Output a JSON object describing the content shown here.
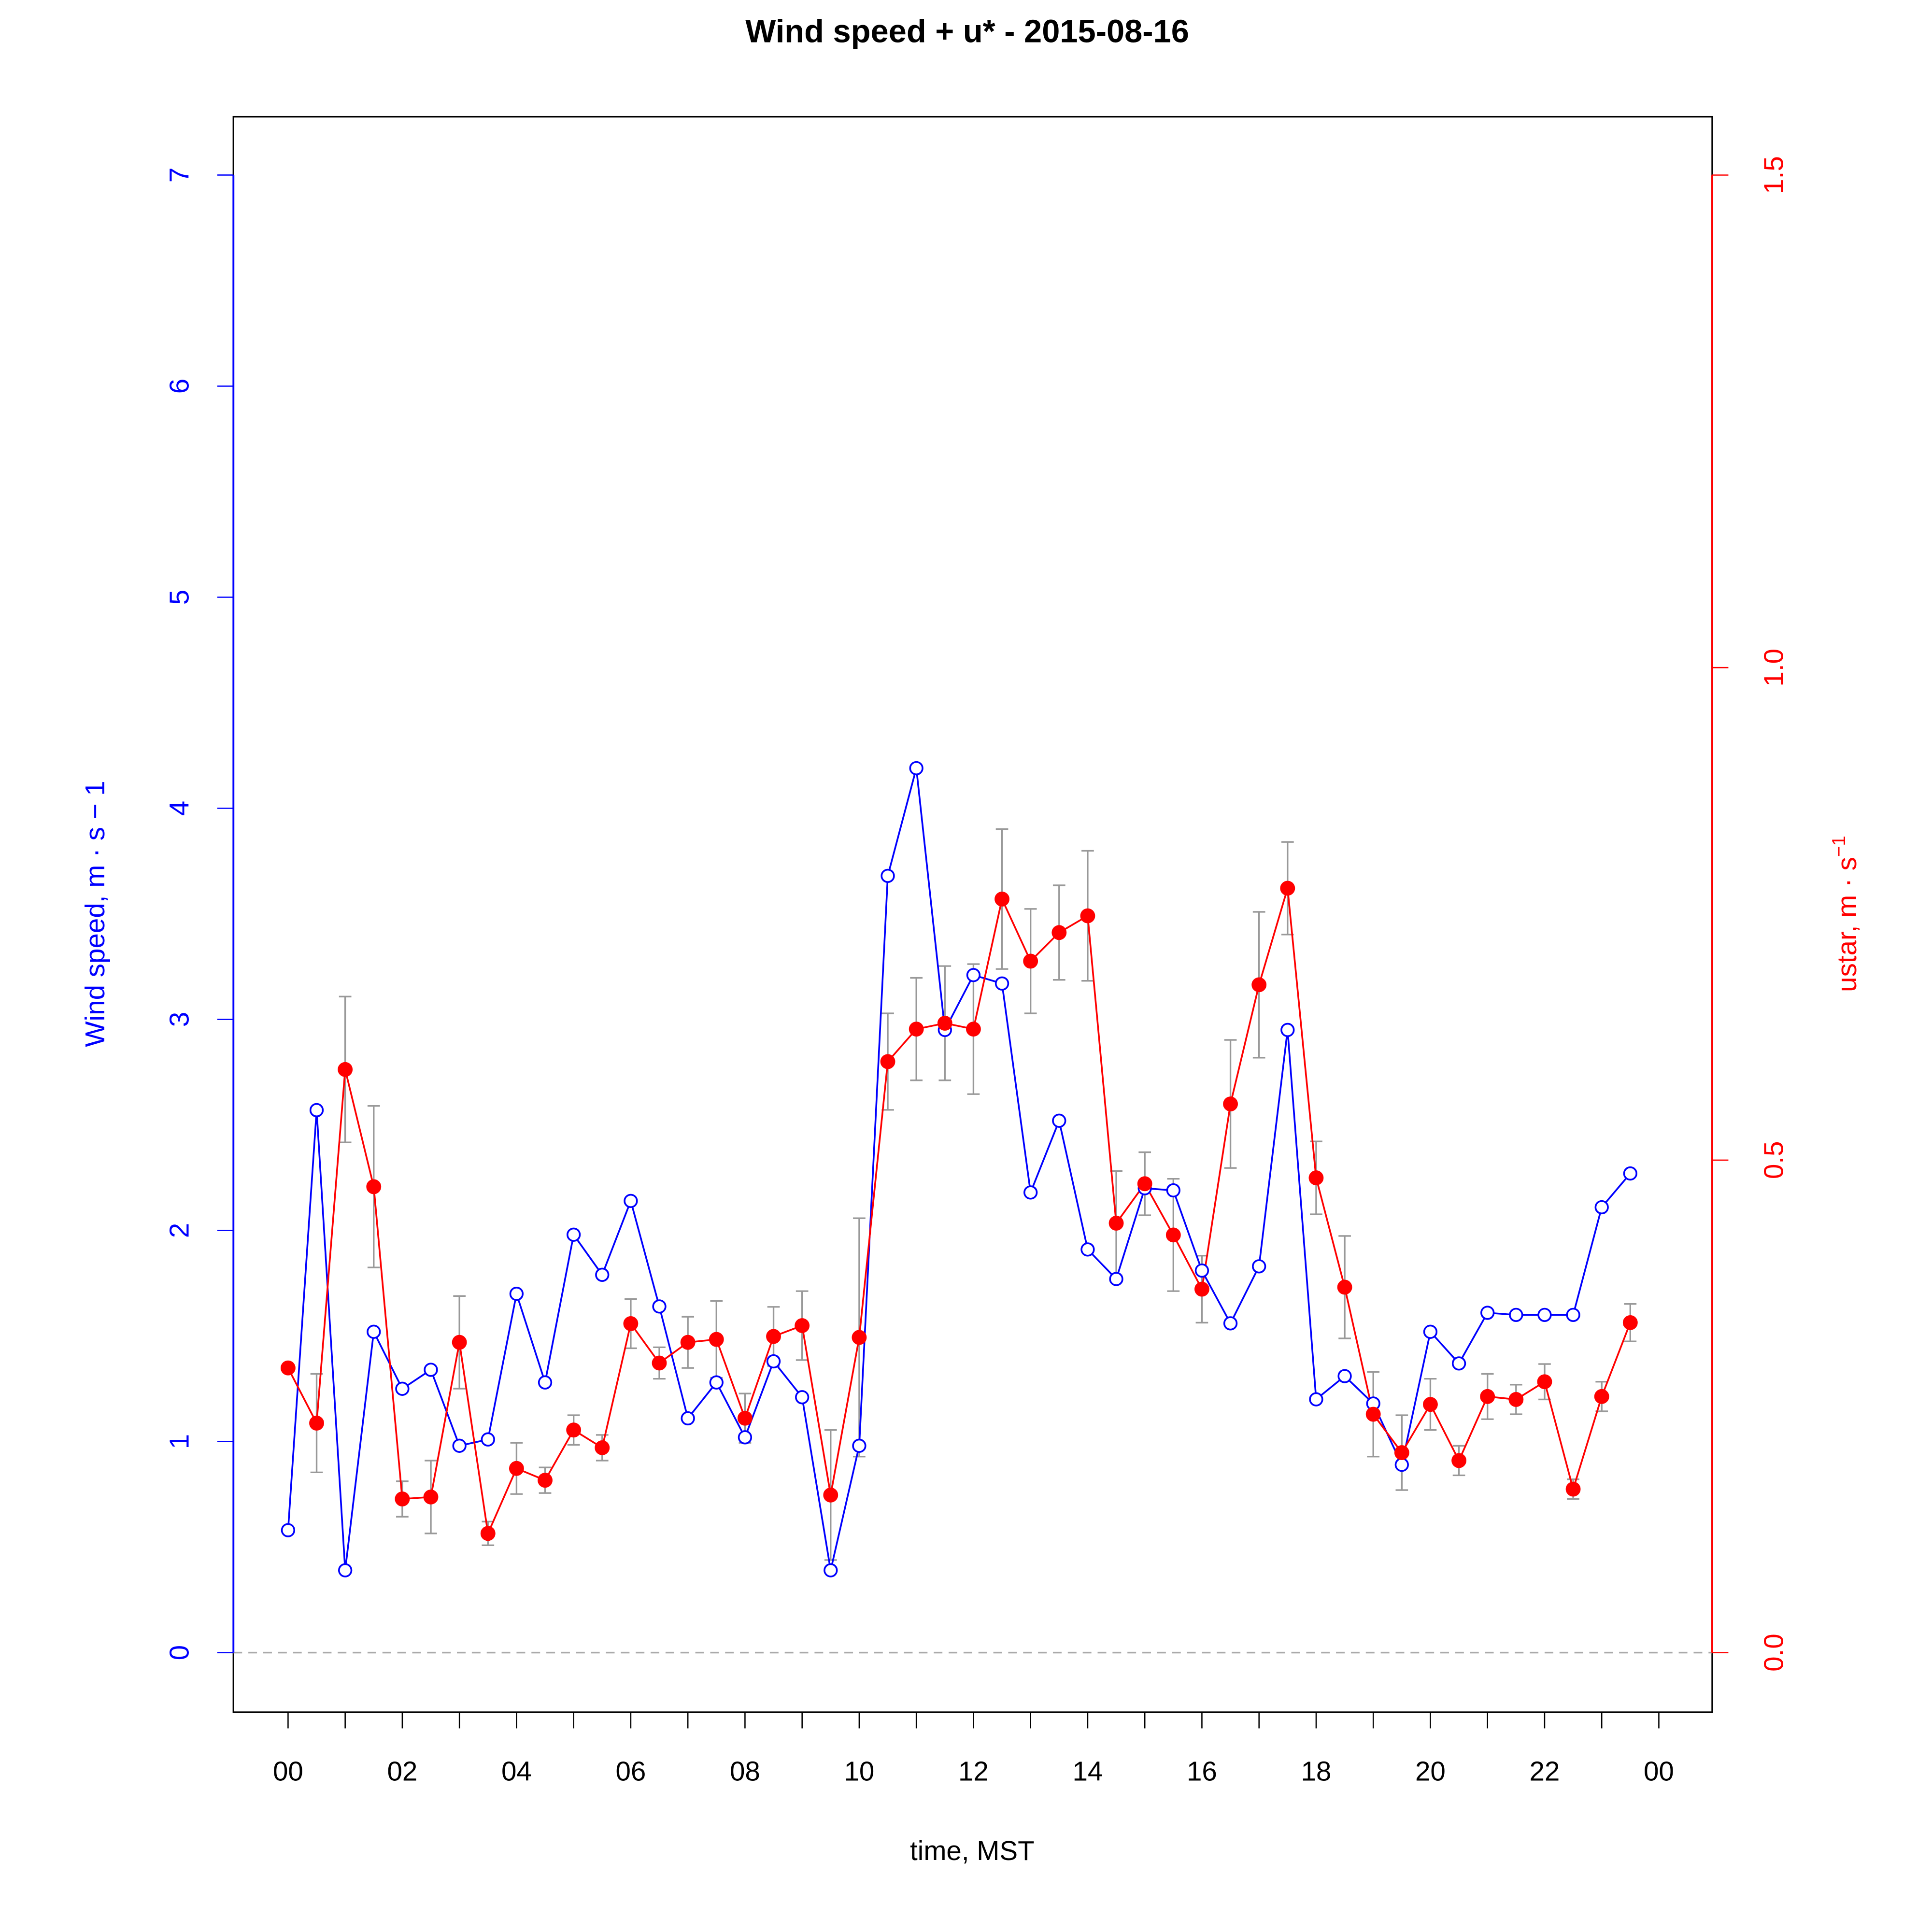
{
  "chart_data": {
    "type": "line",
    "title": "Wind speed + u* -  2015-08-16",
    "xlabel": "time, MST",
    "ylabel": "Wind speed, m · s − 1",
    "ylabel_right": "ustar, m · s",
    "ylabel_right_sup": "−1",
    "xlim_hours": [
      -1,
      25
    ],
    "ylim": [
      -0.3,
      7.3
    ],
    "ylim_right": [
      -0.0643,
      1.564
    ],
    "x_ticks_hours": [
      0,
      1,
      2,
      3,
      4,
      5,
      6,
      7,
      8,
      9,
      10,
      11,
      12,
      13,
      14,
      15,
      16,
      17,
      18,
      19,
      20,
      21,
      22,
      23,
      24
    ],
    "x_tick_labels": [
      "00",
      "02",
      "04",
      "06",
      "08",
      "10",
      "12",
      "14",
      "16",
      "18",
      "20",
      "22",
      "00"
    ],
    "y_ticks": [
      "0",
      "1",
      "2",
      "3",
      "4",
      "5",
      "6",
      "7"
    ],
    "y_ticks_right": [
      "0.0",
      "0.5",
      "1.0",
      "1.5"
    ],
    "colors": {
      "wind": "#0000ff",
      "ustar": "#ff0000",
      "errorbar": "#999999",
      "zero_line": "#aaaaaa"
    },
    "x_hours": [
      0,
      0.5,
      1,
      1.5,
      2,
      2.5,
      3,
      3.5,
      4,
      4.5,
      5,
      5.5,
      6,
      6.5,
      7,
      7.5,
      8,
      8.5,
      9,
      9.5,
      10,
      10.5,
      11,
      11.5,
      12,
      12.5,
      13,
      13.5,
      14,
      14.5,
      15,
      15.5,
      16,
      16.5,
      17,
      17.5,
      18,
      18.5,
      19,
      19.5,
      20,
      20.5,
      21,
      21.5,
      22,
      22.5,
      23,
      23.5
    ],
    "series": [
      {
        "name": "Wind speed",
        "axis": "left",
        "marker": "open-circle",
        "values": [
          0.58,
          2.57,
          0.39,
          1.52,
          1.25,
          1.34,
          0.98,
          1.01,
          1.7,
          1.28,
          1.98,
          1.79,
          2.14,
          1.64,
          1.11,
          1.28,
          1.02,
          1.38,
          1.21,
          0.39,
          0.98,
          3.68,
          4.19,
          2.95,
          3.21,
          3.17,
          2.18,
          2.52,
          1.91,
          1.77,
          2.2,
          2.19,
          1.81,
          1.56,
          1.83,
          2.95,
          1.2,
          1.31,
          1.18,
          0.89,
          1.52,
          1.37,
          1.61,
          1.6,
          1.6,
          1.6,
          2.11,
          2.27
        ]
      },
      {
        "name": "ustar",
        "axis": "right",
        "marker": "filled-circle",
        "values": [
          0.289,
          0.233,
          0.592,
          0.473,
          0.156,
          0.158,
          0.315,
          0.121,
          0.187,
          0.175,
          0.226,
          0.208,
          0.334,
          0.294,
          0.315,
          0.318,
          0.238,
          0.321,
          0.332,
          0.16,
          0.32,
          0.6,
          0.633,
          0.639,
          0.633,
          0.765,
          0.702,
          0.731,
          0.748,
          0.436,
          0.476,
          0.424,
          0.369,
          0.557,
          0.678,
          0.776,
          0.482,
          0.371,
          0.242,
          0.203,
          0.252,
          0.195,
          0.26,
          0.257,
          0.275,
          0.166,
          0.26,
          0.335
        ],
        "error": [
          0,
          0.05,
          0.074,
          0.082,
          0.018,
          0.037,
          0.047,
          0.012,
          0.026,
          0.013,
          0.015,
          0.013,
          0.025,
          0.016,
          0.026,
          0.039,
          0.025,
          0.03,
          0.035,
          0.066,
          0.121,
          0.049,
          0.052,
          0.058,
          0.066,
          0.071,
          0.053,
          0.048,
          0.066,
          0.053,
          0.032,
          0.057,
          0.034,
          0.065,
          0.074,
          0.047,
          0.037,
          0.052,
          0.043,
          0.038,
          0.026,
          0.015,
          0.023,
          0.015,
          0.018,
          0.01,
          0.015,
          0.019
        ]
      }
    ]
  }
}
